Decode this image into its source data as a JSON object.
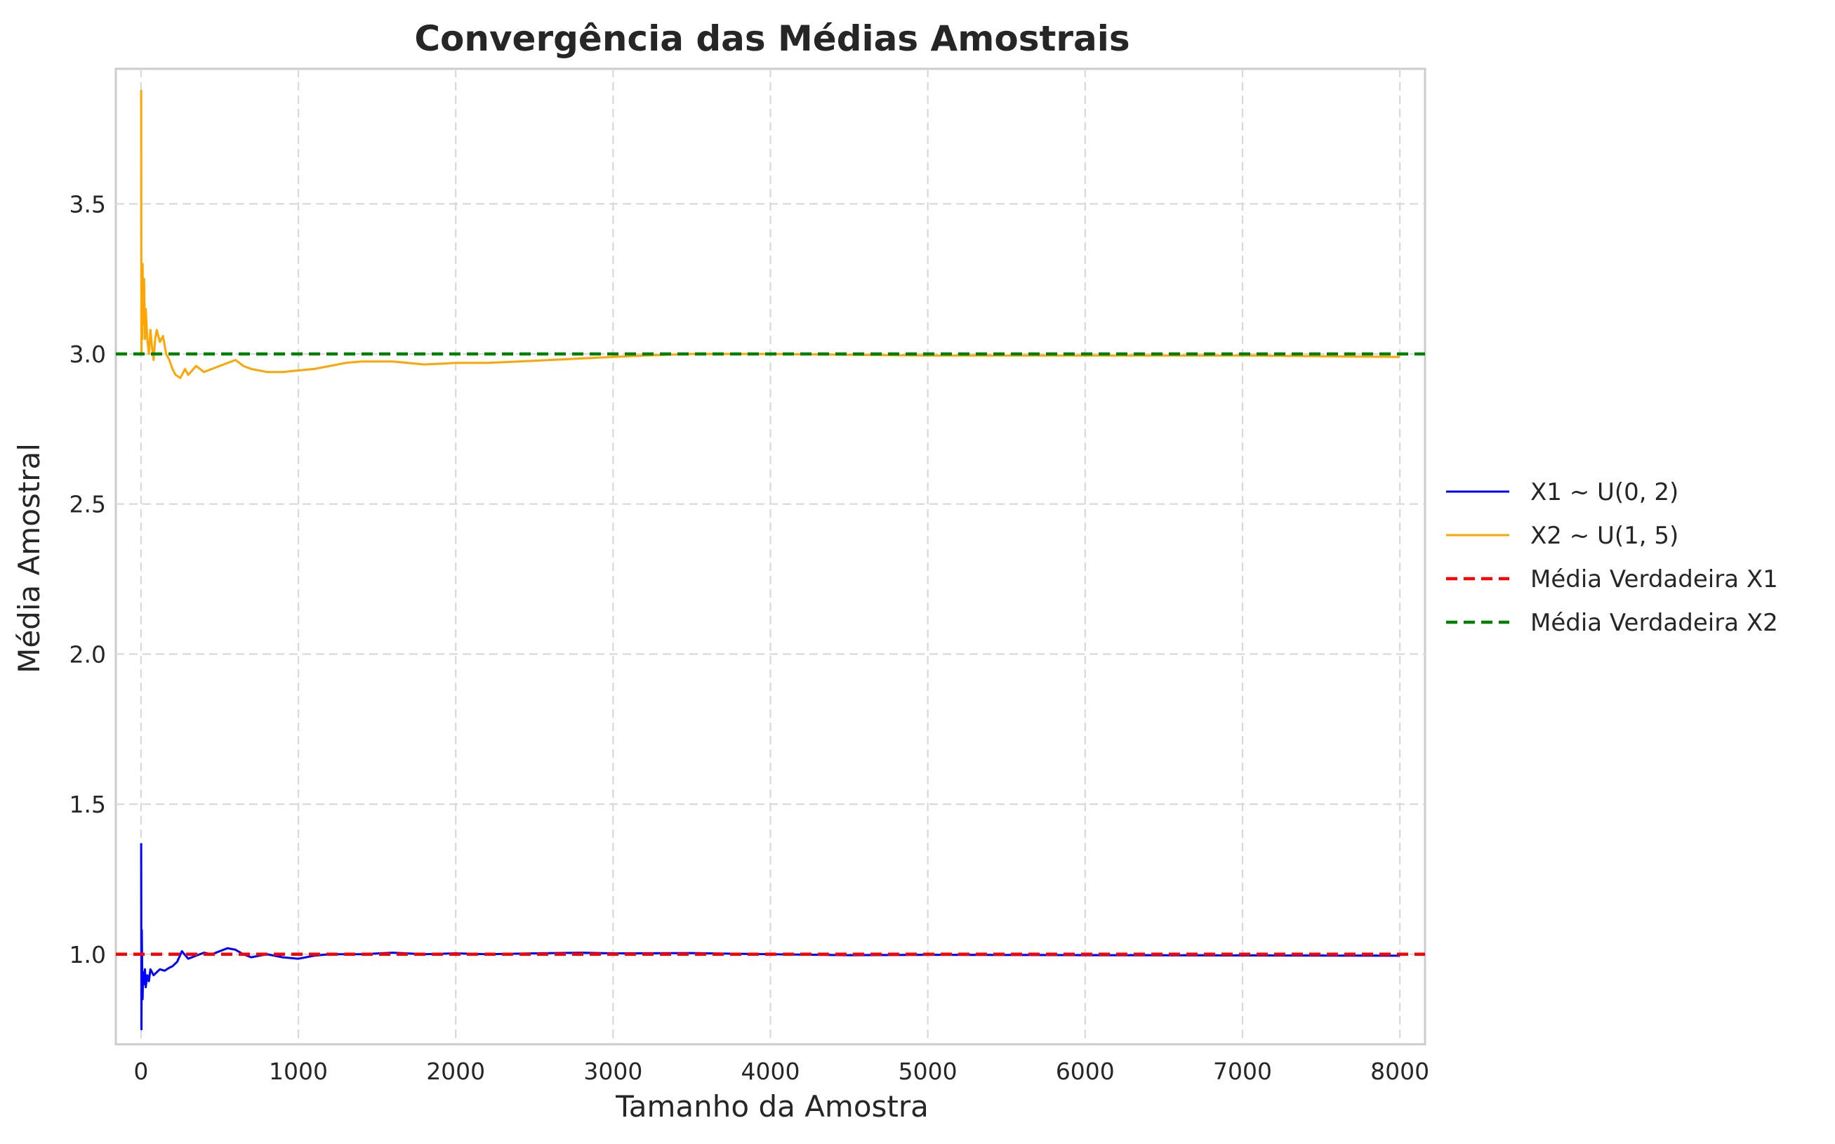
{
  "chart_data": {
    "type": "line",
    "title": "Convergência das Médias Amostrais",
    "xlabel": "Tamanho da Amostra",
    "ylabel": "Média Amostral",
    "xlim": [
      -160,
      8160
    ],
    "ylim": [
      0.7,
      3.95
    ],
    "xticks": [
      0,
      1000,
      2000,
      3000,
      4000,
      5000,
      6000,
      7000,
      8000
    ],
    "xtick_labels": [
      "0",
      "1000",
      "2000",
      "3000",
      "4000",
      "5000",
      "6000",
      "7000",
      "8000"
    ],
    "yticks": [
      1.0,
      1.5,
      2.0,
      2.5,
      3.0,
      3.5
    ],
    "ytick_labels": [
      "1.0",
      "1.5",
      "2.0",
      "2.5",
      "3.0",
      "3.5"
    ],
    "grid": true,
    "legend_position": "center-right-outside",
    "series": [
      {
        "name": "X1 ~ U(0, 2)",
        "color": "#0000ff",
        "style": "solid",
        "x": [
          1,
          2,
          3,
          5,
          8,
          10,
          14,
          20,
          25,
          30,
          40,
          50,
          60,
          80,
          100,
          120,
          150,
          180,
          200,
          230,
          260,
          300,
          350,
          400,
          450,
          500,
          550,
          600,
          650,
          700,
          800,
          900,
          1000,
          1100,
          1200,
          1400,
          1600,
          1800,
          2000,
          2200,
          2500,
          2800,
          3000,
          3500,
          4000,
          4500,
          5000,
          6000,
          7000,
          8000
        ],
        "y": [
          1.37,
          1.05,
          0.75,
          1.08,
          0.92,
          0.85,
          0.94,
          0.9,
          0.95,
          0.89,
          0.93,
          0.91,
          0.95,
          0.93,
          0.94,
          0.95,
          0.945,
          0.955,
          0.96,
          0.975,
          1.01,
          0.985,
          0.995,
          1.005,
          1.0,
          1.01,
          1.02,
          1.015,
          1.0,
          0.99,
          1.0,
          0.99,
          0.985,
          0.995,
          1.0,
          1.0,
          1.005,
          1.0,
          1.003,
          1.0,
          1.003,
          1.005,
          1.003,
          1.004,
          1.0,
          0.997,
          0.998,
          0.997,
          0.996,
          0.995
        ]
      },
      {
        "name": "X2 ~ U(1, 5)",
        "color": "#ffa500",
        "style": "solid",
        "x": [
          1,
          2,
          3,
          5,
          8,
          10,
          15,
          20,
          25,
          30,
          40,
          50,
          60,
          70,
          80,
          90,
          100,
          120,
          140,
          160,
          180,
          200,
          220,
          250,
          280,
          300,
          350,
          400,
          450,
          500,
          550,
          600,
          650,
          700,
          800,
          900,
          1000,
          1100,
          1200,
          1300,
          1400,
          1600,
          1800,
          2000,
          2200,
          2400,
          2600,
          2800,
          3000,
          3200,
          3500,
          4000,
          5000,
          6000,
          7000,
          8000
        ],
        "y": [
          3.88,
          3.3,
          3.0,
          3.2,
          3.05,
          3.3,
          3.1,
          3.25,
          3.05,
          3.15,
          3.05,
          3.0,
          3.08,
          3.02,
          2.98,
          3.05,
          3.08,
          3.04,
          3.06,
          3.0,
          2.98,
          2.95,
          2.93,
          2.92,
          2.95,
          2.93,
          2.96,
          2.94,
          2.95,
          2.96,
          2.97,
          2.98,
          2.96,
          2.95,
          2.94,
          2.94,
          2.945,
          2.95,
          2.96,
          2.97,
          2.975,
          2.975,
          2.965,
          2.97,
          2.97,
          2.975,
          2.98,
          2.985,
          2.99,
          2.995,
          3.0,
          3.0,
          2.995,
          2.995,
          2.995,
          2.99
        ]
      },
      {
        "name": "Média Verdadeira X1",
        "color": "#ff0000",
        "style": "dashed",
        "y_constant": 1.0
      },
      {
        "name": "Média Verdadeira X2",
        "color": "#008000",
        "style": "dashed",
        "y_constant": 3.0
      }
    ]
  }
}
